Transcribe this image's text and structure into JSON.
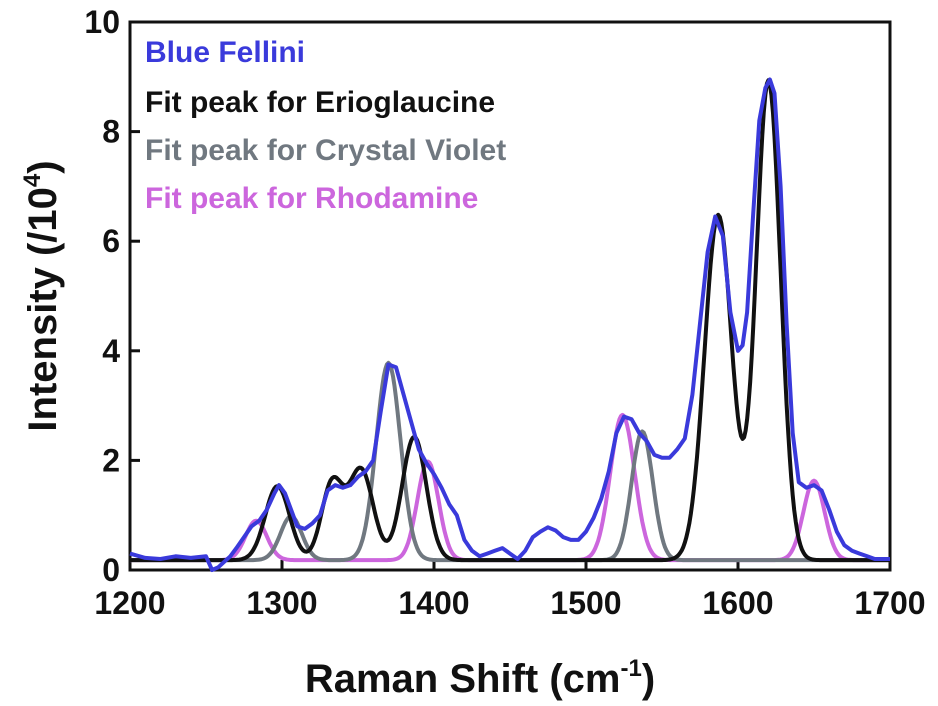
{
  "chart_data": {
    "type": "line",
    "title": "",
    "xlabel": "Raman Shift (cm",
    "xlabel_sup": "-1",
    "xlabel_end": ")",
    "ylabel": "Intensity (/10",
    "ylabel_sup": "4",
    "ylabel_end": ")",
    "xlim": [
      1200,
      1700
    ],
    "ylim": [
      0,
      10
    ],
    "x_ticks": [
      "1200",
      "1300",
      "1400",
      "1500",
      "1600",
      "1700"
    ],
    "y_ticks": [
      "0",
      "2",
      "4",
      "6",
      "8",
      "10"
    ],
    "grid": false,
    "legend_position": "top-left",
    "series": [
      {
        "name": "Blue Fellini",
        "color": "#3a3adb",
        "baseline": 0.18,
        "x": [
          1200,
          1210,
          1220,
          1230,
          1240,
          1250,
          1254,
          1258,
          1262,
          1266,
          1270,
          1275,
          1280,
          1285,
          1290,
          1295,
          1298,
          1302,
          1306,
          1310,
          1315,
          1320,
          1325,
          1330,
          1335,
          1340,
          1345,
          1350,
          1355,
          1360,
          1365,
          1370,
          1375,
          1380,
          1385,
          1390,
          1395,
          1400,
          1405,
          1410,
          1415,
          1420,
          1425,
          1430,
          1435,
          1440,
          1445,
          1450,
          1455,
          1460,
          1465,
          1470,
          1475,
          1480,
          1485,
          1490,
          1495,
          1500,
          1505,
          1510,
          1515,
          1520,
          1525,
          1530,
          1535,
          1540,
          1545,
          1550,
          1555,
          1560,
          1565,
          1570,
          1575,
          1580,
          1585,
          1590,
          1595,
          1600,
          1603,
          1606,
          1610,
          1614,
          1618,
          1621,
          1624,
          1628,
          1632,
          1636,
          1640,
          1645,
          1650,
          1655,
          1660,
          1665,
          1670,
          1675,
          1680,
          1685,
          1690,
          1695,
          1700
        ],
        "y": [
          0.3,
          0.22,
          0.2,
          0.25,
          0.22,
          0.25,
          0.0,
          0.05,
          0.15,
          0.25,
          0.4,
          0.6,
          0.8,
          0.9,
          1.1,
          1.4,
          1.55,
          1.4,
          1.1,
          0.8,
          0.75,
          0.85,
          1.0,
          1.45,
          1.55,
          1.5,
          1.55,
          1.7,
          1.8,
          2.0,
          2.9,
          3.75,
          3.7,
          3.2,
          2.7,
          2.2,
          1.95,
          1.75,
          1.5,
          1.2,
          1.0,
          0.55,
          0.35,
          0.25,
          0.3,
          0.35,
          0.4,
          0.3,
          0.2,
          0.35,
          0.6,
          0.7,
          0.78,
          0.72,
          0.6,
          0.55,
          0.55,
          0.7,
          0.95,
          1.3,
          1.8,
          2.5,
          2.8,
          2.75,
          2.5,
          2.35,
          2.1,
          2.05,
          2.05,
          2.2,
          2.4,
          3.2,
          4.5,
          5.8,
          6.45,
          6.1,
          4.7,
          4.0,
          4.1,
          4.7,
          6.5,
          8.2,
          8.8,
          8.95,
          8.7,
          7.0,
          4.5,
          2.5,
          1.6,
          1.5,
          1.55,
          1.45,
          1.1,
          0.7,
          0.45,
          0.35,
          0.3,
          0.25,
          0.2,
          0.2,
          0.2
        ]
      },
      {
        "name": "Fit peak for Erioglaucine",
        "color": "#111111",
        "baseline": 0.18,
        "peaks": [
          {
            "center": 1297,
            "amplitude": 1.35,
            "sigma": 8
          },
          {
            "center": 1333,
            "amplitude": 1.4,
            "sigma": 7
          },
          {
            "center": 1352,
            "amplitude": 1.65,
            "sigma": 8
          },
          {
            "center": 1387,
            "amplitude": 2.25,
            "sigma": 8
          },
          {
            "center": 1587,
            "amplitude": 6.3,
            "sigma": 9
          },
          {
            "center": 1620,
            "amplitude": 8.75,
            "sigma": 8
          }
        ]
      },
      {
        "name": "Fit peak for Crystal Violet",
        "color": "#707880",
        "baseline": 0.18,
        "peaks": [
          {
            "center": 1306,
            "amplitude": 0.8,
            "sigma": 7
          },
          {
            "center": 1370,
            "amplitude": 3.6,
            "sigma": 8
          },
          {
            "center": 1537,
            "amplitude": 2.35,
            "sigma": 7
          }
        ]
      },
      {
        "name": "Fit peak for Rhodamine",
        "color": "#cc66dd",
        "baseline": 0.18,
        "peaks": [
          {
            "center": 1283,
            "amplitude": 0.72,
            "sigma": 7
          },
          {
            "center": 1396,
            "amplitude": 1.8,
            "sigma": 7
          },
          {
            "center": 1524,
            "amplitude": 2.65,
            "sigma": 8
          },
          {
            "center": 1650,
            "amplitude": 1.45,
            "sigma": 7
          }
        ]
      }
    ]
  }
}
